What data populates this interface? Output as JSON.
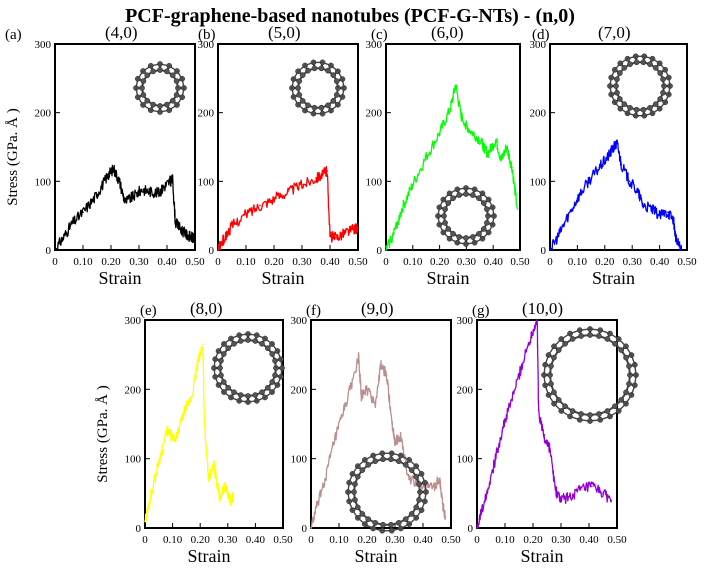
{
  "figure": {
    "title": "PCF-graphene-based nanotubes (PCF-G-NTs) - (n,0)"
  },
  "chart_data": [
    {
      "type": "line",
      "tag": "(a)",
      "chirality": "(4,0)",
      "color": "#000000",
      "xlabel": "Strain",
      "ylabel": "Stress (GPa. Å )",
      "xlim": [
        0,
        0.5
      ],
      "ylim": [
        0,
        300
      ],
      "xticks": [
        "0",
        "0.10",
        "0.20",
        "0.30",
        "0.40",
        "0.50"
      ],
      "yticks": [
        "0",
        "100",
        "200",
        "300"
      ],
      "series": [
        {
          "x": [
            0.0,
            0.03,
            0.06,
            0.1,
            0.14,
            0.17,
            0.19,
            0.21,
            0.23,
            0.25,
            0.28,
            0.31,
            0.34,
            0.37,
            0.39,
            0.41,
            0.42,
            0.43,
            0.45,
            0.47,
            0.49,
            0.5
          ],
          "y": [
            0,
            18,
            38,
            55,
            75,
            95,
            110,
            118,
            100,
            70,
            78,
            88,
            85,
            83,
            92,
            100,
            102,
            40,
            30,
            22,
            18,
            15
          ]
        }
      ]
    },
    {
      "type": "line",
      "tag": "(b)",
      "chirality": "(5,0)",
      "color": "#ff0000",
      "xlabel": "Strain",
      "ylabel": "",
      "xlim": [
        0,
        0.5
      ],
      "ylim": [
        0,
        300
      ],
      "xticks": [
        "0",
        "0.10",
        "0.20",
        "0.30",
        "0.40",
        "0.50"
      ],
      "yticks": [
        "0",
        "100",
        "200",
        "300"
      ],
      "series": [
        {
          "x": [
            0.0,
            0.02,
            0.05,
            0.1,
            0.15,
            0.2,
            0.25,
            0.3,
            0.35,
            0.38,
            0.39,
            0.4,
            0.42,
            0.45,
            0.48,
            0.5
          ],
          "y": [
            0,
            15,
            35,
            52,
            65,
            75,
            85,
            95,
            105,
            112,
            115,
            20,
            18,
            25,
            30,
            32
          ]
        }
      ]
    },
    {
      "type": "line",
      "tag": "(c)",
      "chirality": "(6,0)",
      "color": "#00ff00",
      "xlabel": "Strain",
      "ylabel": "",
      "xlim": [
        0,
        0.5
      ],
      "ylim": [
        0,
        300
      ],
      "xticks": [
        "0",
        "0.10",
        "0.20",
        "0.30",
        "0.40",
        "0.50"
      ],
      "yticks": [
        "0",
        "100",
        "200",
        "300"
      ],
      "series": [
        {
          "x": [
            0.0,
            0.03,
            0.06,
            0.1,
            0.15,
            0.2,
            0.24,
            0.26,
            0.28,
            0.31,
            0.35,
            0.38,
            0.41,
            0.43,
            0.45,
            0.47,
            0.49
          ],
          "y": [
            0,
            25,
            60,
            95,
            135,
            170,
            205,
            240,
            195,
            175,
            160,
            140,
            160,
            130,
            150,
            120,
            60
          ]
        }
      ]
    },
    {
      "type": "line",
      "tag": "(d)",
      "chirality": "(7,0)",
      "color": "#0000ff",
      "xlabel": "Strain",
      "ylabel": "",
      "xlim": [
        0,
        0.5
      ],
      "ylim": [
        0,
        300
      ],
      "xticks": [
        "0",
        "0.10",
        "0.20",
        "0.30",
        "0.40",
        "0.50"
      ],
      "yticks": [
        "0",
        "100",
        "200",
        "300"
      ],
      "series": [
        {
          "x": [
            0.0,
            0.03,
            0.06,
            0.1,
            0.14,
            0.18,
            0.21,
            0.23,
            0.245,
            0.26,
            0.29,
            0.32,
            0.34,
            0.37,
            0.4,
            0.43,
            0.45,
            0.46,
            0.48
          ],
          "y": [
            0,
            20,
            45,
            75,
            100,
            120,
            135,
            148,
            155,
            125,
            100,
            85,
            65,
            60,
            50,
            55,
            45,
            15,
            0
          ]
        }
      ]
    },
    {
      "type": "line",
      "tag": "(e)",
      "chirality": "(8,0)",
      "color": "#ffff00",
      "xlabel": "Strain",
      "ylabel": "Stress (GPa. Å )",
      "xlim": [
        0,
        0.5
      ],
      "ylim": [
        0,
        300
      ],
      "xticks": [
        "0",
        "0.10",
        "0.20",
        "0.30",
        "0.40",
        "0.50"
      ],
      "yticks": [
        "0",
        "100",
        "200",
        "300"
      ],
      "series": [
        {
          "x": [
            0.0,
            0.02,
            0.05,
            0.08,
            0.11,
            0.14,
            0.17,
            0.19,
            0.21,
            0.215,
            0.23,
            0.25,
            0.27,
            0.29,
            0.31,
            0.32
          ],
          "y": [
            10,
            45,
            95,
            140,
            125,
            165,
            190,
            235,
            265,
            150,
            70,
            90,
            45,
            60,
            40,
            45
          ]
        }
      ]
    },
    {
      "type": "line",
      "tag": "(f)",
      "chirality": "(9,0)",
      "color": "#bc8f8f",
      "xlabel": "Strain",
      "ylabel": "",
      "xlim": [
        0,
        0.5
      ],
      "ylim": [
        0,
        300
      ],
      "xticks": [
        "0",
        "0.10",
        "0.20",
        "0.30",
        "0.40",
        "0.50"
      ],
      "yticks": [
        "0",
        "100",
        "200",
        "300"
      ],
      "series": [
        {
          "x": [
            0.0,
            0.02,
            0.05,
            0.08,
            0.11,
            0.14,
            0.17,
            0.18,
            0.2,
            0.23,
            0.25,
            0.27,
            0.29,
            0.3,
            0.32,
            0.35,
            0.4,
            0.44,
            0.46,
            0.47,
            0.48
          ],
          "y": [
            0,
            30,
            70,
            120,
            160,
            200,
            245,
            190,
            200,
            180,
            235,
            220,
            150,
            125,
            130,
            70,
            60,
            60,
            70,
            35,
            15
          ]
        }
      ]
    },
    {
      "type": "line",
      "tag": "(g)",
      "chirality": "(10,0)",
      "color": "#9400d3",
      "xlabel": "Strain",
      "ylabel": "",
      "xlim": [
        0,
        0.5
      ],
      "ylim": [
        0,
        300
      ],
      "xticks": [
        "0",
        "0.10",
        "0.20",
        "0.30",
        "0.40",
        "0.50"
      ],
      "yticks": [
        "0",
        "100",
        "200",
        "300"
      ],
      "series": [
        {
          "x": [
            0.0,
            0.03,
            0.06,
            0.09,
            0.12,
            0.15,
            0.18,
            0.2,
            0.215,
            0.22,
            0.24,
            0.26,
            0.28,
            0.3,
            0.33,
            0.37,
            0.41,
            0.45,
            0.48
          ],
          "y": [
            0,
            45,
            90,
            140,
            180,
            220,
            260,
            285,
            300,
            170,
            130,
            115,
            55,
            40,
            45,
            55,
            60,
            50,
            40
          ]
        }
      ]
    }
  ]
}
